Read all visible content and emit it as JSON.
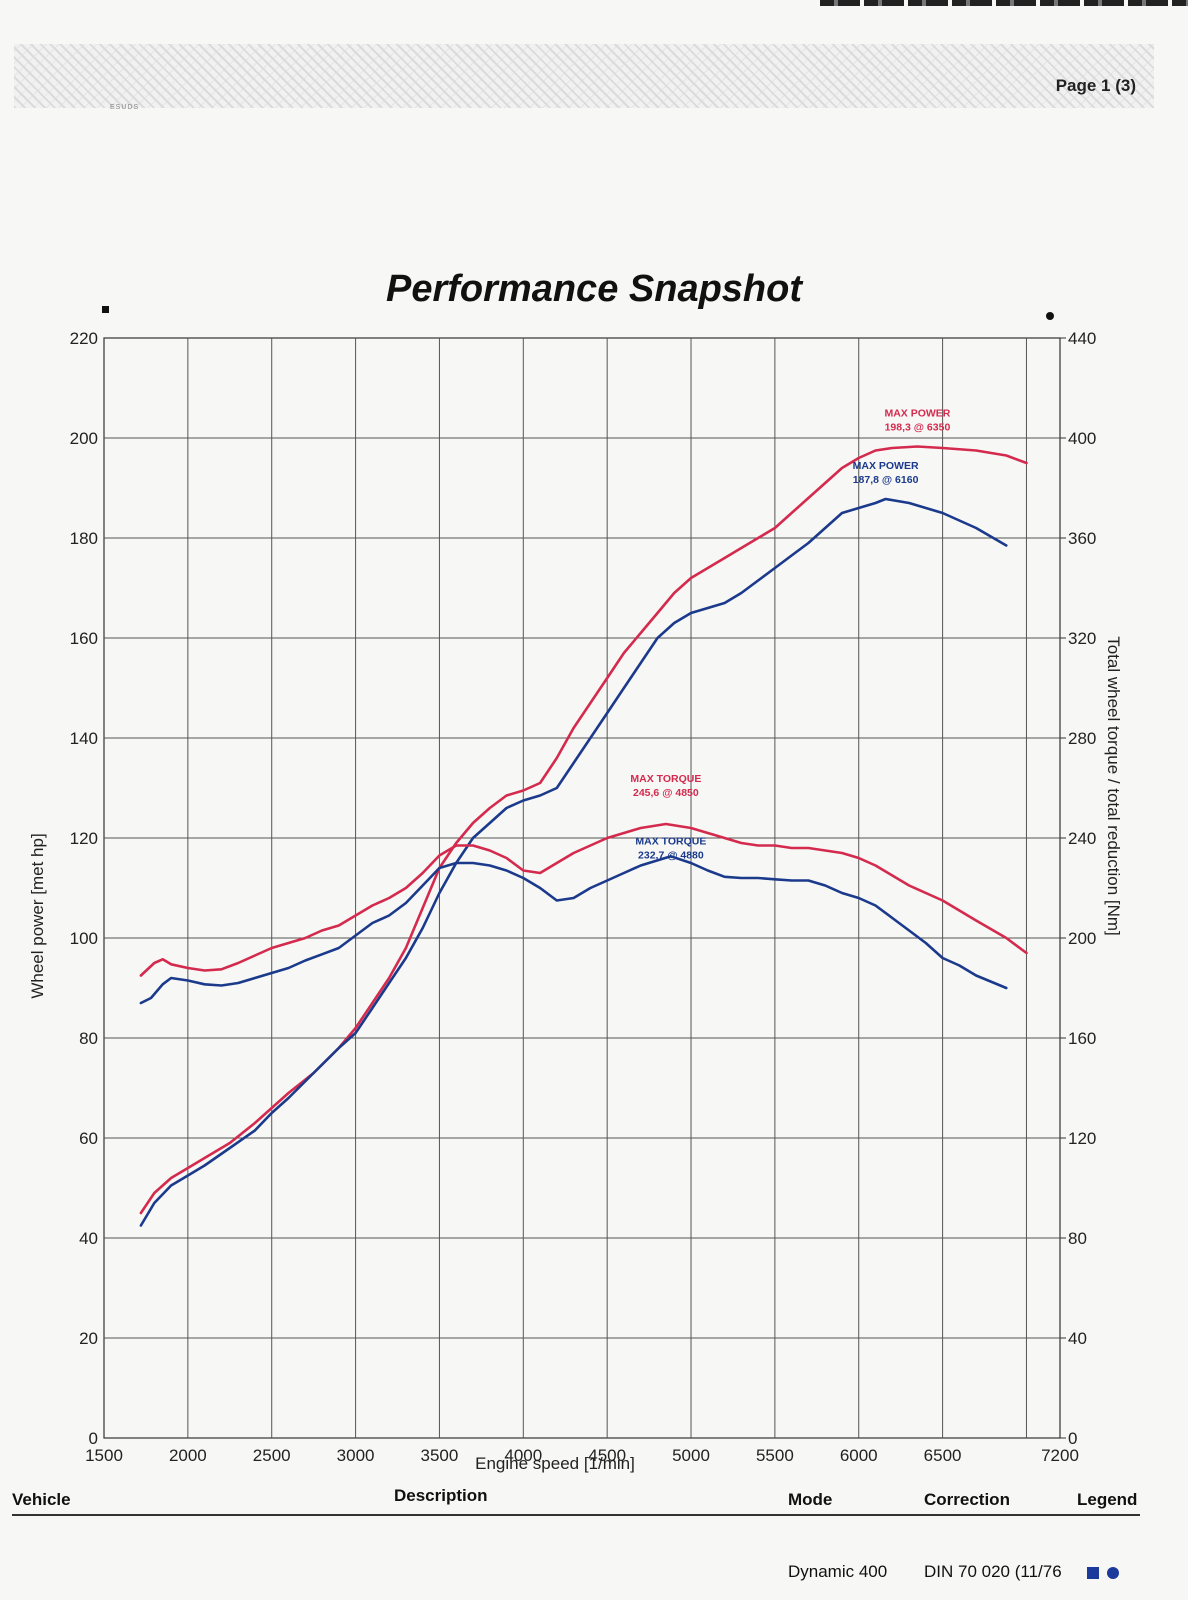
{
  "header": {
    "page": "Page 1 (3)",
    "small_text": "ESUDS"
  },
  "chart_data": {
    "type": "line",
    "title": "Performance Snapshot",
    "xlabel": "Engine speed [1/min]",
    "ylabel": "Wheel power [met hp]",
    "y2label": "Total wheel torque / total reduction [Nm]",
    "xlim": [
      1500,
      7200
    ],
    "ylim": [
      0,
      220
    ],
    "y2lim": [
      0,
      440
    ],
    "x_ticks": [
      1500,
      2000,
      2500,
      3000,
      3500,
      4000,
      4500,
      5000,
      5500,
      6000,
      6500,
      7200
    ],
    "y_ticks": [
      0,
      20,
      40,
      60,
      80,
      100,
      120,
      140,
      160,
      180,
      200,
      220
    ],
    "y2_ticks": [
      0,
      40,
      80,
      120,
      160,
      200,
      240,
      280,
      320,
      360,
      400,
      440
    ],
    "grid": true,
    "series": [
      {
        "name": "Power (red)",
        "axis": "left",
        "color": "#d42a4e",
        "x": [
          1720,
          1800,
          1900,
          2000,
          2100,
          2250,
          2400,
          2500,
          2600,
          2750,
          2900,
          3000,
          3100,
          3200,
          3300,
          3400,
          3500,
          3600,
          3700,
          3800,
          3900,
          4000,
          4100,
          4200,
          4300,
          4400,
          4500,
          4600,
          4700,
          4800,
          4900,
          5000,
          5100,
          5200,
          5300,
          5400,
          5500,
          5600,
          5700,
          5800,
          5900,
          6000,
          6100,
          6200,
          6350,
          6500,
          6700,
          6880,
          7000
        ],
        "y": [
          45,
          49,
          52,
          54,
          56,
          59,
          63,
          66,
          69,
          73,
          78,
          82,
          87,
          92,
          98,
          106,
          114,
          119,
          123,
          126,
          128.5,
          129.5,
          131,
          136,
          142,
          147,
          152,
          157,
          161,
          165,
          169,
          172,
          174,
          176,
          178,
          180,
          182,
          185,
          188,
          191,
          194,
          196,
          197.5,
          198,
          198.3,
          198,
          197.5,
          196.5,
          195
        ]
      },
      {
        "name": "Power (blue)",
        "axis": "left",
        "color": "#1b3a8c",
        "x": [
          1720,
          1800,
          1900,
          2000,
          2100,
          2250,
          2400,
          2500,
          2600,
          2750,
          2900,
          3000,
          3100,
          3200,
          3300,
          3400,
          3500,
          3600,
          3700,
          3800,
          3900,
          4000,
          4100,
          4200,
          4300,
          4400,
          4500,
          4600,
          4700,
          4800,
          4900,
          5000,
          5100,
          5200,
          5300,
          5400,
          5500,
          5600,
          5700,
          5800,
          5900,
          6000,
          6100,
          6160,
          6300,
          6500,
          6700,
          6880
        ],
        "y": [
          42.5,
          47,
          50.5,
          52.5,
          54.5,
          58,
          61.5,
          65,
          68,
          73,
          78,
          81,
          86,
          91,
          96,
          102,
          109,
          115,
          120,
          123,
          126,
          127.5,
          128.5,
          130,
          135,
          140,
          145,
          150,
          155,
          160,
          163,
          165,
          166,
          167,
          169,
          171.5,
          174,
          176.5,
          179,
          182,
          185,
          186,
          187,
          187.8,
          187,
          185,
          182,
          178.5
        ]
      },
      {
        "name": "Torque (red)",
        "axis": "right",
        "color": "#d42a4e",
        "x": [
          1720,
          1800,
          1850,
          1900,
          2000,
          2100,
          2200,
          2300,
          2400,
          2500,
          2600,
          2700,
          2800,
          2900,
          3000,
          3100,
          3200,
          3300,
          3400,
          3500,
          3600,
          3700,
          3800,
          3900,
          4000,
          4100,
          4200,
          4300,
          4400,
          4500,
          4600,
          4700,
          4850,
          5000,
          5100,
          5200,
          5300,
          5400,
          5500,
          5600,
          5700,
          5800,
          5900,
          6000,
          6100,
          6200,
          6300,
          6500,
          6700,
          6880,
          7000
        ],
        "y": [
          185,
          190,
          191.5,
          189.5,
          188,
          187,
          187.5,
          190,
          193,
          196,
          198,
          200,
          203,
          205,
          209,
          213,
          216,
          220,
          226,
          233,
          237,
          237,
          235,
          232,
          227,
          226,
          230,
          234,
          237,
          240,
          242,
          244,
          245.6,
          244,
          242,
          240,
          238,
          237,
          237,
          236,
          236,
          235,
          234,
          232,
          229,
          225,
          221,
          215,
          207,
          200,
          194
        ]
      },
      {
        "name": "Torque (blue)",
        "axis": "right",
        "color": "#1b3a8c",
        "x": [
          1720,
          1780,
          1850,
          1900,
          2000,
          2100,
          2200,
          2300,
          2400,
          2500,
          2600,
          2700,
          2800,
          2900,
          3000,
          3100,
          3200,
          3300,
          3400,
          3500,
          3600,
          3700,
          3800,
          3900,
          4000,
          4100,
          4200,
          4300,
          4400,
          4500,
          4600,
          4700,
          4880,
          5000,
          5100,
          5200,
          5300,
          5400,
          5500,
          5600,
          5700,
          5800,
          5900,
          6000,
          6100,
          6200,
          6300,
          6400,
          6500,
          6600,
          6700,
          6880
        ],
        "y": [
          174,
          176,
          181.5,
          184,
          183,
          181.5,
          181,
          182,
          184,
          186,
          188,
          191,
          193.5,
          196,
          201,
          206,
          209,
          214,
          221,
          228,
          230,
          230,
          229,
          227,
          224,
          220,
          215,
          216,
          220,
          223,
          226,
          229,
          232.7,
          230,
          227,
          224.5,
          224,
          224,
          223.5,
          223,
          223,
          221,
          218,
          216,
          213,
          208,
          203,
          198,
          192,
          189,
          185,
          180
        ]
      }
    ],
    "annotations": [
      {
        "label": "MAX POWER",
        "value": "198,3 @ 6350",
        "color": "#d42a4e"
      },
      {
        "label": "MAX POWER",
        "value": "187,8 @ 6160",
        "color": "#1b3a8c"
      },
      {
        "label": "MAX TORQUE",
        "value": "245,6 @ 4850",
        "color": "#d42a4e"
      },
      {
        "label": "MAX TORQUE",
        "value": "232,7 @ 4880",
        "color": "#1b3a8c"
      }
    ]
  },
  "footer": {
    "headers": {
      "vehicle": "Vehicle",
      "description": "Description",
      "mode": "Mode",
      "correction": "Correction",
      "legend": "Legend"
    },
    "values": {
      "mode": "Dynamic 400",
      "correction": "DIN 70 020 (11/76"
    },
    "legend_color": "#1b3a9c"
  }
}
